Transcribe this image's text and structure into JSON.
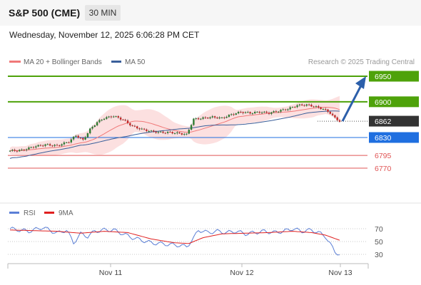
{
  "header": {
    "title": "S&P 500 (CME)",
    "timeframe": "30 MIN"
  },
  "datetime": "Wednesday, November 12, 2025 6:06:28 PM CET",
  "legend": {
    "ma20_label": "MA 20 + Bollinger Bands",
    "ma50_label": "MA 50",
    "credit": "Research © 2025 Trading Central",
    "rsi_label": "RSI",
    "rsi_ma_label": "9MA"
  },
  "colors": {
    "resistance": "#4ea20a",
    "current": "#333333",
    "support": "#1f6fe0",
    "minor": "#e05555",
    "ma20": "#f07878",
    "bollinger": "#fbd6d6",
    "ma50": "#3a5f9a",
    "candle_up": "#2e7d32",
    "candle_down": "#c62828",
    "rsi": "#5b7fd6",
    "rsi_ma": "#e02020",
    "arrow": "#2c5faa"
  },
  "chart_data": [
    {
      "type": "candlestick",
      "title": "S&P 500 (CME)",
      "timeframe": "30 MIN",
      "x_ticks": [
        "Nov 11",
        "Nov 12",
        "Nov 13"
      ],
      "ylim": [
        6705,
        6965
      ],
      "levels": [
        {
          "value": 6950,
          "label": "6950",
          "kind": "resistance",
          "style": "line"
        },
        {
          "value": 6900,
          "label": "6900",
          "kind": "resistance",
          "style": "line"
        },
        {
          "value": 6862,
          "label": "6862",
          "kind": "current",
          "style": "dotted"
        },
        {
          "value": 6830,
          "label": "6830",
          "kind": "support",
          "style": "line"
        },
        {
          "value": 6795,
          "label": "6795",
          "kind": "minor",
          "style": "line"
        },
        {
          "value": 6770,
          "label": "6770",
          "kind": "minor",
          "style": "line"
        }
      ],
      "projection": {
        "from": 6862,
        "to": 6950
      },
      "series": [
        {
          "name": "MA 20 + Bollinger Bands",
          "kind": "ma20"
        },
        {
          "name": "MA 50",
          "kind": "ma50"
        }
      ],
      "close_keypoints": [
        [
          0,
          6804
        ],
        [
          5,
          6805
        ],
        [
          10,
          6812
        ],
        [
          15,
          6816
        ],
        [
          20,
          6814
        ],
        [
          25,
          6822
        ],
        [
          28,
          6834
        ],
        [
          31,
          6825
        ],
        [
          34,
          6846
        ],
        [
          37,
          6860
        ],
        [
          40,
          6868
        ],
        [
          44,
          6872
        ],
        [
          48,
          6865
        ],
        [
          52,
          6852
        ],
        [
          56,
          6846
        ],
        [
          60,
          6842
        ],
        [
          64,
          6840
        ],
        [
          68,
          6840
        ],
        [
          72,
          6838
        ],
        [
          75,
          6836
        ],
        [
          78,
          6866
        ],
        [
          82,
          6868
        ],
        [
          86,
          6870
        ],
        [
          90,
          6868
        ],
        [
          94,
          6875
        ],
        [
          98,
          6880
        ],
        [
          102,
          6878
        ],
        [
          106,
          6880
        ],
        [
          110,
          6878
        ],
        [
          114,
          6882
        ],
        [
          118,
          6886
        ],
        [
          122,
          6893
        ],
        [
          126,
          6894
        ],
        [
          130,
          6890
        ],
        [
          133,
          6886
        ],
        [
          136,
          6878
        ],
        [
          138,
          6868
        ],
        [
          140,
          6862
        ]
      ]
    },
    {
      "type": "line",
      "title": "RSI",
      "series": [
        {
          "name": "RSI"
        },
        {
          "name": "9MA"
        }
      ],
      "y_ticks": [
        70,
        50,
        30
      ],
      "ylim": [
        20,
        80
      ],
      "rsi_keypoints": [
        [
          0,
          70
        ],
        [
          8,
          66
        ],
        [
          14,
          72
        ],
        [
          20,
          63
        ],
        [
          24,
          68
        ],
        [
          27,
          48
        ],
        [
          30,
          62
        ],
        [
          33,
          58
        ],
        [
          36,
          66
        ],
        [
          40,
          68
        ],
        [
          44,
          68
        ],
        [
          48,
          62
        ],
        [
          52,
          56
        ],
        [
          56,
          52
        ],
        [
          60,
          48
        ],
        [
          66,
          46
        ],
        [
          72,
          44
        ],
        [
          75,
          42
        ],
        [
          78,
          55
        ],
        [
          80,
          68
        ],
        [
          84,
          64
        ],
        [
          88,
          66
        ],
        [
          92,
          64
        ],
        [
          96,
          66
        ],
        [
          100,
          62
        ],
        [
          104,
          64
        ],
        [
          108,
          66
        ],
        [
          112,
          64
        ],
        [
          116,
          66
        ],
        [
          120,
          70
        ],
        [
          124,
          66
        ],
        [
          128,
          68
        ],
        [
          131,
          64
        ],
        [
          134,
          58
        ],
        [
          136,
          46
        ],
        [
          138,
          34
        ],
        [
          140,
          30
        ]
      ],
      "ma_keypoints": [
        [
          0,
          68
        ],
        [
          10,
          67
        ],
        [
          20,
          66
        ],
        [
          30,
          63
        ],
        [
          40,
          66
        ],
        [
          50,
          64
        ],
        [
          60,
          54
        ],
        [
          70,
          48
        ],
        [
          76,
          47
        ],
        [
          82,
          56
        ],
        [
          90,
          62
        ],
        [
          100,
          63
        ],
        [
          110,
          64
        ],
        [
          120,
          66
        ],
        [
          128,
          64
        ],
        [
          134,
          60
        ],
        [
          140,
          52
        ]
      ]
    }
  ]
}
